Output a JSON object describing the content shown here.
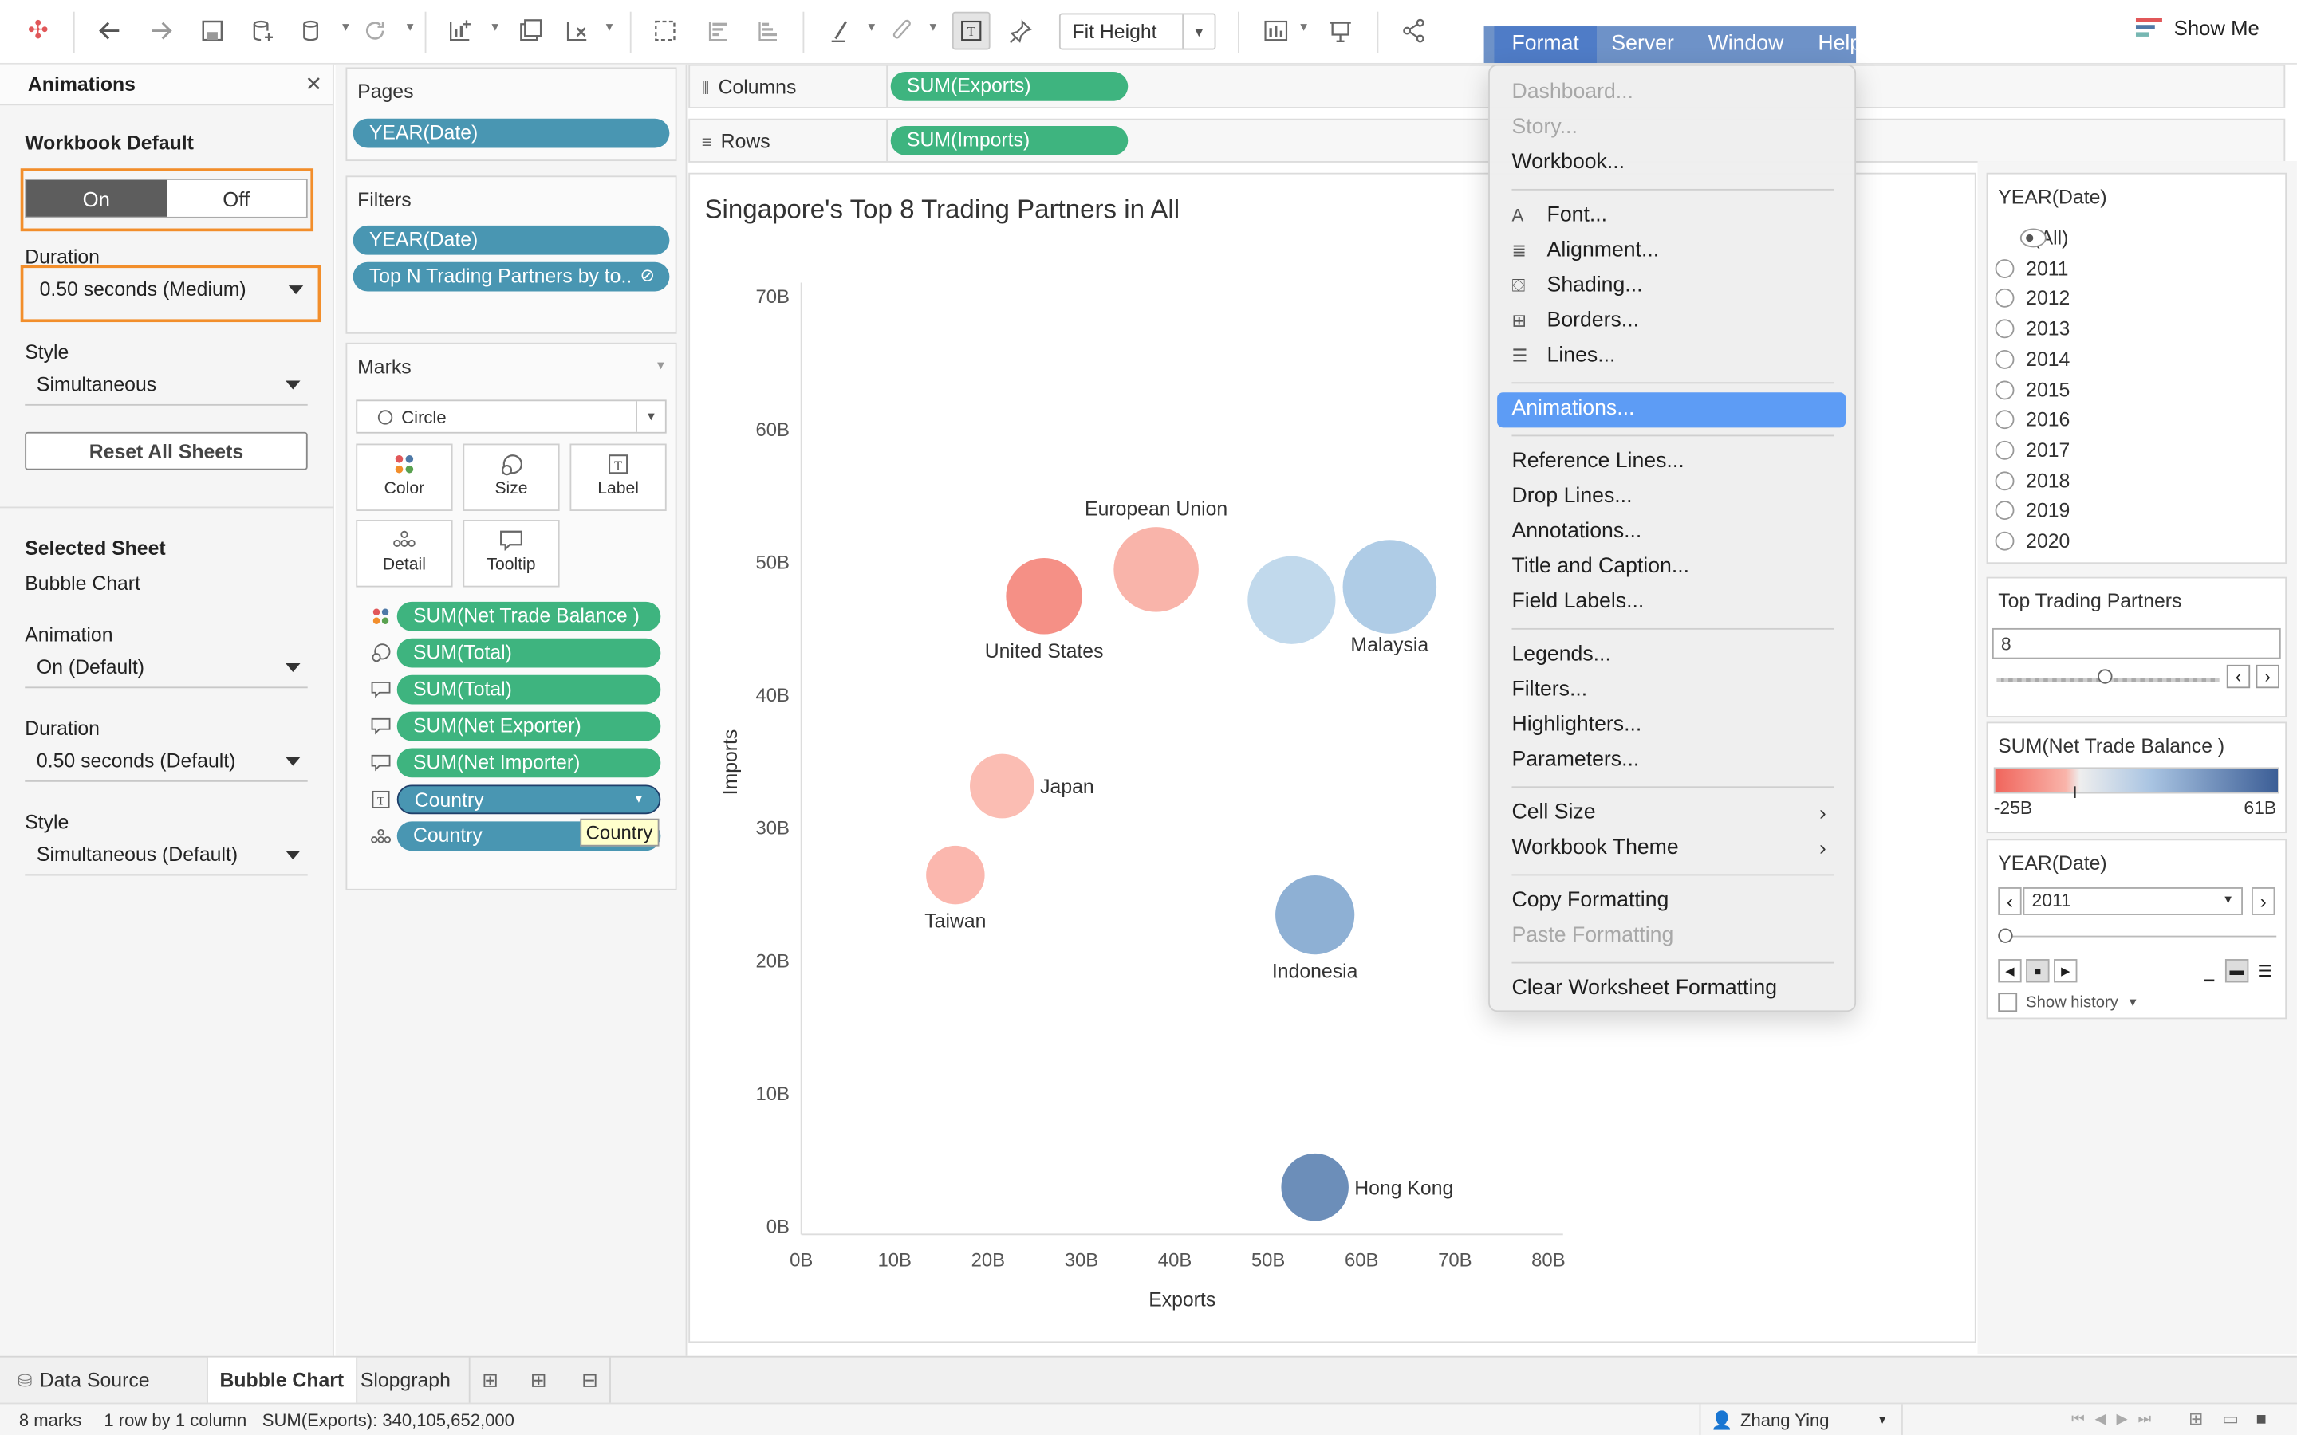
{
  "toolbar": {
    "fit_label": "Fit Height",
    "show_me": "Show Me"
  },
  "menubar": [
    "Format",
    "Server",
    "Window",
    "Help"
  ],
  "format_menu": {
    "items": [
      {
        "label": "Dashboard...",
        "disabled": true
      },
      {
        "label": "Story...",
        "disabled": true
      },
      {
        "label": "Workbook..."
      },
      {
        "label": "Font...",
        "icon": "font-icon"
      },
      {
        "label": "Alignment...",
        "icon": "alignment-icon"
      },
      {
        "label": "Shading...",
        "icon": "shading-icon"
      },
      {
        "label": "Borders...",
        "icon": "borders-icon"
      },
      {
        "label": "Lines...",
        "icon": "lines-icon"
      },
      {
        "label": "Animations...",
        "highlighted": true
      },
      {
        "label": "Reference Lines..."
      },
      {
        "label": "Drop Lines..."
      },
      {
        "label": "Annotations..."
      },
      {
        "label": "Title and Caption..."
      },
      {
        "label": "Field Labels..."
      },
      {
        "label": "Legends..."
      },
      {
        "label": "Filters..."
      },
      {
        "label": "Highlighters..."
      },
      {
        "label": "Parameters..."
      },
      {
        "label": "Cell Size",
        "submenu": true
      },
      {
        "label": "Workbook Theme",
        "submenu": true
      },
      {
        "label": "Copy Formatting"
      },
      {
        "label": "Paste Formatting",
        "disabled": true
      },
      {
        "label": "Clear Worksheet Formatting"
      }
    ]
  },
  "animations_panel": {
    "title": "Animations",
    "workbook_default": "Workbook Default",
    "on": "On",
    "off": "Off",
    "duration_label": "Duration",
    "duration_value": "0.50 seconds (Medium)",
    "style_label": "Style",
    "style_value": "Simultaneous",
    "reset_button": "Reset All Sheets",
    "selected_sheet": "Selected Sheet",
    "sheet_name": "Bubble Chart",
    "animation_label": "Animation",
    "animation_value": "On (Default)",
    "sheet_duration_label": "Duration",
    "sheet_duration_value": "0.50 seconds (Default)",
    "sheet_style_label": "Style",
    "sheet_style_value": "Simultaneous (Default)"
  },
  "pages": {
    "title": "Pages",
    "pill": "YEAR(Date)"
  },
  "filters": {
    "title": "Filters",
    "pills": [
      "YEAR(Date)",
      "Top N Trading Partners by to.."
    ]
  },
  "marks": {
    "title": "Marks",
    "type": "Circle",
    "buttons": [
      "Color",
      "Size",
      "Label",
      "Detail",
      "Tooltip"
    ],
    "fields": [
      "SUM(Net Trade Balance )",
      "SUM(Total)",
      "SUM(Total)",
      "SUM(Net Exporter)",
      "SUM(Net Importer)",
      "Country",
      "Country"
    ],
    "tooltip": "Country"
  },
  "shelves": {
    "columns_label": "Columns",
    "columns_pill": "SUM(Exports)",
    "rows_label": "Rows",
    "rows_pill": "SUM(Imports)"
  },
  "chart_data": {
    "type": "scatter",
    "title": "Singapore's Top 8 Trading Partners in All",
    "xlabel": "Exports",
    "ylabel": "Imports",
    "xlim": [
      0,
      80
    ],
    "ylim": [
      0,
      70
    ],
    "x_ticks": [
      "0B",
      "10B",
      "20B",
      "30B",
      "40B",
      "50B",
      "60B",
      "70B",
      "80B"
    ],
    "y_ticks": [
      "0B",
      "10B",
      "20B",
      "30B",
      "40B",
      "50B",
      "60B",
      "70B"
    ],
    "points": [
      {
        "label": "United States",
        "x": 26,
        "y": 47.5,
        "r": 26,
        "color": "#f4877c"
      },
      {
        "label": "European Union",
        "x": 38,
        "y": 49.5,
        "r": 29,
        "color": "#f9aea3"
      },
      {
        "label": "",
        "x": 52.5,
        "y": 47.2,
        "r": 30,
        "color": "#bcd6ea"
      },
      {
        "label": "Malaysia",
        "x": 63,
        "y": 48.2,
        "r": 32,
        "color": "#a8c8e4"
      },
      {
        "label": "Japan",
        "x": 21.5,
        "y": 33.2,
        "r": 22,
        "color": "#fbb7ad"
      },
      {
        "label": "Taiwan",
        "x": 16.5,
        "y": 26.5,
        "r": 20,
        "color": "#fbb1a7"
      },
      {
        "label": "Indonesia",
        "x": 55,
        "y": 23.5,
        "r": 27,
        "color": "#84a9d0"
      },
      {
        "label": "Hong Kong",
        "x": 55,
        "y": 3,
        "r": 23,
        "color": "#5f84b3"
      }
    ]
  },
  "legends": {
    "year_title": "YEAR(Date)",
    "year_options": [
      "(All)",
      "2011",
      "2012",
      "2013",
      "2014",
      "2015",
      "2016",
      "2017",
      "2018",
      "2019",
      "2020"
    ],
    "top_title": "Top Trading Partners",
    "top_value": "8",
    "color_title": "SUM(Net Trade Balance )",
    "color_min": "-25B",
    "color_max": "61B",
    "page_title": "YEAR(Date)",
    "page_value": "2011",
    "show_history": "Show history"
  },
  "tabs": {
    "data_source": "Data Source",
    "sheets": [
      "Bubble Chart",
      "Slopgraph"
    ]
  },
  "status": {
    "marks": "8 marks",
    "rows": "1 row by 1 column",
    "sum": "SUM(Exports): 340,105,652,000",
    "user": "Zhang Ying"
  }
}
